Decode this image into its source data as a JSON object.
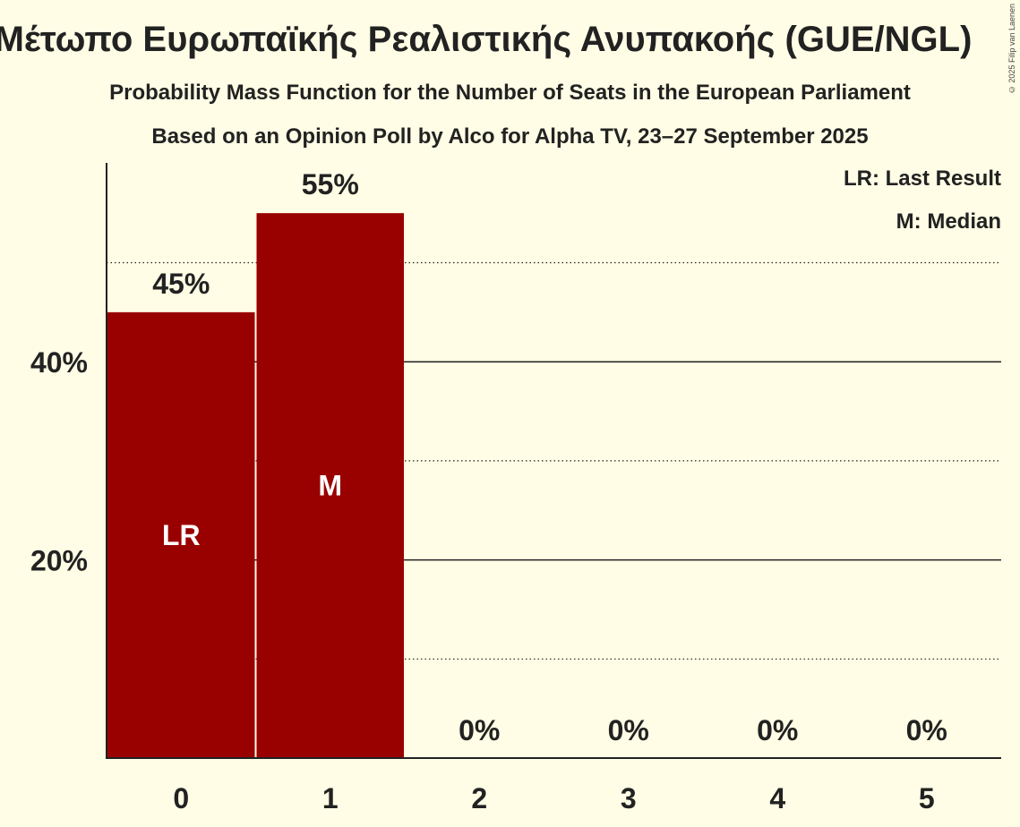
{
  "title": "Μέτωπο Ευρωπαϊκής Ρεαλιστικής Ανυπακοής (GUE/NGL)",
  "subtitle": "Probability Mass Function for the Number of Seats in the European Parliament",
  "subtitle2": "Based on an Opinion Poll by Alco for Alpha TV, 23–27 September 2025",
  "copyright": "© 2025 Filip van Laenen",
  "legend": {
    "last_result": "LR: Last Result",
    "median": "M: Median"
  },
  "colors": {
    "bar": "#990000",
    "background": "#fffde5"
  },
  "chart_data": {
    "type": "bar",
    "categories": [
      "0",
      "1",
      "2",
      "3",
      "4",
      "5"
    ],
    "values": [
      45,
      55,
      0,
      0,
      0,
      0
    ],
    "data_labels": [
      "45%",
      "55%",
      "0%",
      "0%",
      "0%",
      "0%"
    ],
    "bar_markers": [
      "LR",
      "M",
      "",
      "",
      "",
      ""
    ],
    "ylim": [
      0,
      60
    ],
    "y_ticks": [
      20,
      40
    ],
    "y_tick_labels": [
      "20%",
      "40%"
    ],
    "gridlines_solid": [
      20,
      40
    ],
    "gridlines_dotted": [
      10,
      30,
      50
    ],
    "xlabel": "",
    "ylabel": ""
  }
}
